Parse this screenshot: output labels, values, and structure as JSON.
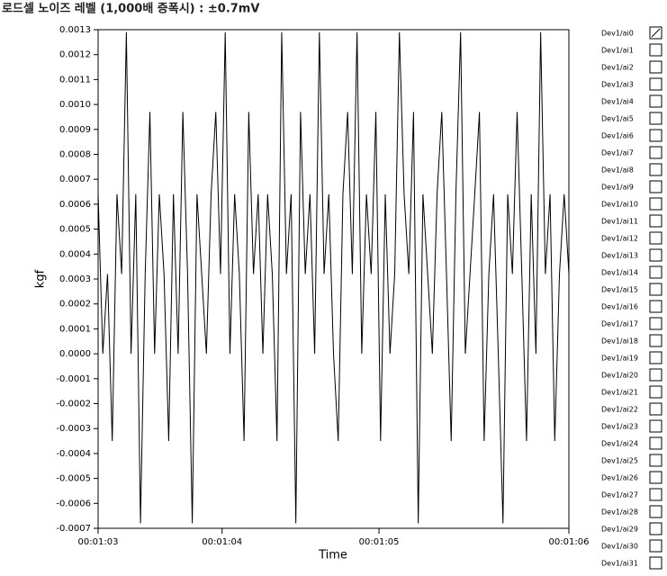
{
  "chart_data": {
    "type": "line",
    "title": "로드셀 노이즈 레벨 (1,000배 증폭시) : ±0.7mV",
    "xlabel": "Time",
    "ylabel": "kgf",
    "xlim": [
      63,
      66
    ],
    "xticks": [
      {
        "value": 63,
        "label": "00:01:03"
      },
      {
        "value": 63.79,
        "label": "00:01:04"
      },
      {
        "value": 64.79,
        "label": "00:01:05"
      },
      {
        "value": 66,
        "label": "00:01:06"
      }
    ],
    "ylim": [
      -0.0007,
      0.0013
    ],
    "yticks": [
      {
        "value": 0.0013,
        "label": "0.0013"
      },
      {
        "value": 0.0012,
        "label": "0.0012"
      },
      {
        "value": 0.0011,
        "label": "0.0011"
      },
      {
        "value": 0.001,
        "label": "0.0010"
      },
      {
        "value": 0.0009,
        "label": "0.0009"
      },
      {
        "value": 0.0008,
        "label": "0.0008"
      },
      {
        "value": 0.0007,
        "label": "0.0007"
      },
      {
        "value": 0.0006,
        "label": "0.0006"
      },
      {
        "value": 0.0005,
        "label": "0.0005"
      },
      {
        "value": 0.0004,
        "label": "0.0004"
      },
      {
        "value": 0.0003,
        "label": "0.0003"
      },
      {
        "value": 0.0002,
        "label": "0.0002"
      },
      {
        "value": 0.0001,
        "label": "0.0001"
      },
      {
        "value": 0,
        "label": "0.0000"
      },
      {
        "value": -0.0001,
        "label": "-0.0001"
      },
      {
        "value": -0.0002,
        "label": "-0.0002"
      },
      {
        "value": -0.0003,
        "label": "-0.0003"
      },
      {
        "value": -0.0004,
        "label": "-0.0004"
      },
      {
        "value": -0.0005,
        "label": "-0.0005"
      },
      {
        "value": -0.0006,
        "label": "-0.0006"
      },
      {
        "value": -0.0007,
        "label": "-0.0007"
      }
    ],
    "grid": false,
    "x": [
      63,
      63.03,
      63.06,
      63.09,
      63.12,
      63.15,
      63.18,
      63.21,
      63.24,
      63.27,
      63.3,
      63.33,
      63.36,
      63.39,
      63.42,
      63.45,
      63.48,
      63.51,
      63.54,
      63.57,
      63.6,
      63.63,
      63.66,
      63.69,
      63.72,
      63.75,
      63.78,
      63.81,
      63.84,
      63.87,
      63.9,
      63.93,
      63.96,
      63.99,
      64.02,
      64.05,
      64.08,
      64.11,
      64.14,
      64.17,
      64.2,
      64.23,
      64.26,
      64.29,
      64.32,
      64.35,
      64.38,
      64.41,
      64.44,
      64.47,
      64.5,
      64.53,
      64.56,
      64.59,
      64.62,
      64.65,
      64.68,
      64.71,
      64.74,
      64.77,
      64.8,
      64.83,
      64.86,
      64.89,
      64.92,
      64.95,
      64.98,
      65.01,
      65.04,
      65.07,
      65.1,
      65.13,
      65.16,
      65.19,
      65.22,
      65.25,
      65.28,
      65.31,
      65.34,
      65.37,
      65.4,
      65.43,
      65.46,
      65.49,
      65.52,
      65.55,
      65.58,
      65.61,
      65.64,
      65.67,
      65.7,
      65.73,
      65.76,
      65.79,
      65.82,
      65.85,
      65.88,
      65.91,
      65.94,
      65.97,
      66
    ],
    "series": [
      {
        "name": "Dev1/ai0",
        "color": "#000000",
        "values": [
          0.00064,
          0,
          0.00032,
          -0.00035,
          0.00064,
          0.00032,
          0.00129,
          0,
          0.00064,
          -0.00068,
          0.00032,
          0.00097,
          0,
          0.00064,
          0.00032,
          -0.00035,
          0.00064,
          0,
          0.00097,
          0.00032,
          -0.00068,
          0.00064,
          0.00032,
          0,
          0.00064,
          0.00097,
          0.00032,
          0.00129,
          0,
          0.00064,
          0.00032,
          -0.00035,
          0.00097,
          0.00032,
          0.00064,
          0,
          0.00064,
          0.00032,
          -0.00035,
          0.00129,
          0.00032,
          0.00064,
          -0.00068,
          0.00097,
          0.00032,
          0.00064,
          0,
          0.00129,
          0.00032,
          0.00064,
          0,
          -0.00035,
          0.00064,
          0.00097,
          0.00032,
          0.00129,
          0,
          0.00064,
          0.00032,
          0.00097,
          -0.00035,
          0.00064,
          0,
          0.00032,
          0.00129,
          0.00064,
          0.00032,
          0.00097,
          -0.00068,
          0.00064,
          0.00032,
          0,
          0.00064,
          0.00097,
          0.00032,
          -0.00035,
          0.00064,
          0.00129,
          0,
          0.00032,
          0.00064,
          0.00097,
          -0.00035,
          0.00032,
          0.00064,
          0,
          -0.00068,
          0.00064,
          0.00032,
          0.00097,
          0.00032,
          -0.00035,
          0.00064,
          0,
          0.00129,
          0.00032,
          0.00064,
          -0.00035,
          0.00032,
          0.00064,
          0.00032
        ]
      }
    ],
    "channels": [
      "Dev1/ai1",
      "Dev1/ai2",
      "Dev1/ai3",
      "Dev1/ai4",
      "Dev1/ai5",
      "Dev1/ai6",
      "Dev1/ai7",
      "Dev1/ai8",
      "Dev1/ai9",
      "Dev1/ai10",
      "Dev1/ai11",
      "Dev1/ai12",
      "Dev1/ai13",
      "Dev1/ai14",
      "Dev1/ai15",
      "Dev1/ai16",
      "Dev1/ai17",
      "Dev1/ai18",
      "Dev1/ai19",
      "Dev1/ai20",
      "Dev1/ai21",
      "Dev1/ai22",
      "Dev1/ai23",
      "Dev1/ai24",
      "Dev1/ai25",
      "Dev1/ai26",
      "Dev1/ai27",
      "Dev1/ai28",
      "Dev1/ai29",
      "Dev1/ai30",
      "Dev1/ai31"
    ]
  }
}
